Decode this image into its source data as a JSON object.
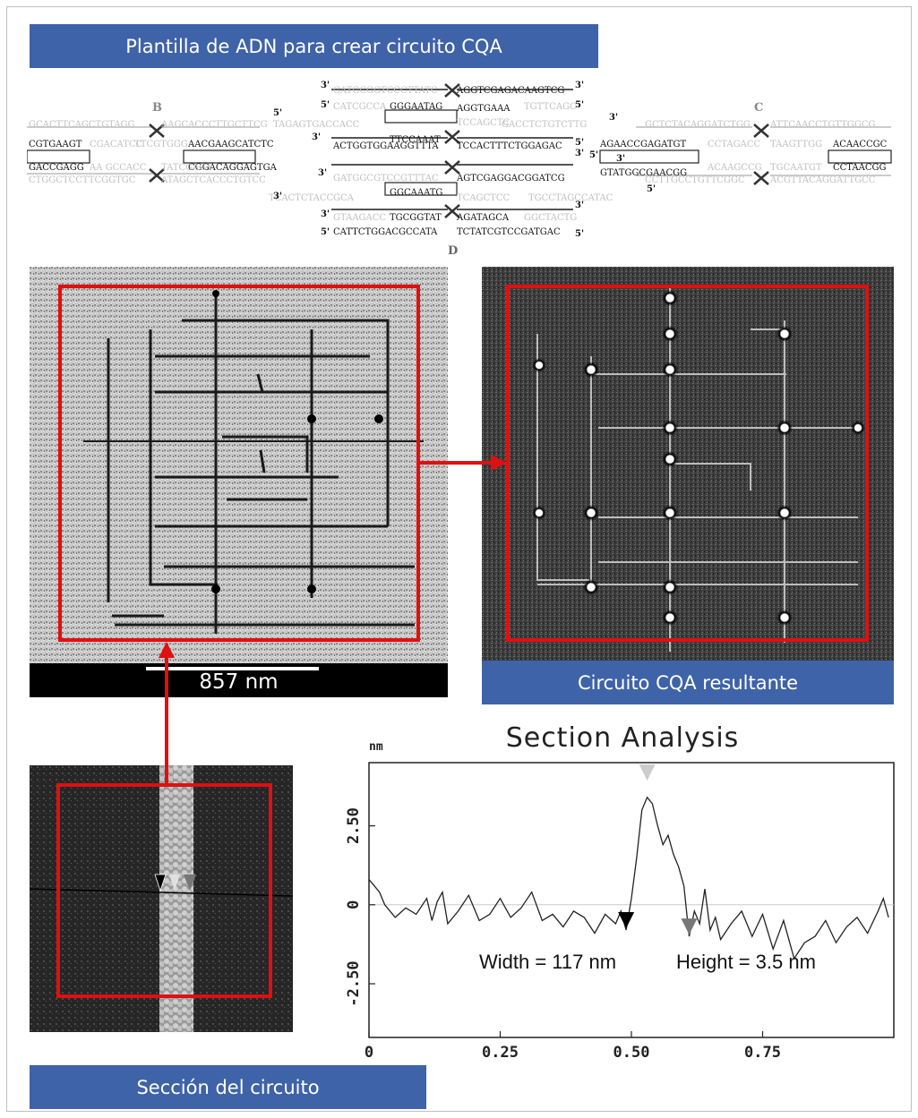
{
  "banners": {
    "template": "Plantilla de ADN para crear circuito CQA",
    "result": "Circuito CQA resultante",
    "section": "Sección del circuito"
  },
  "dna_template": {
    "block_labels": [
      "B",
      "C",
      "D"
    ],
    "prime_marks": [
      "3'",
      "5'"
    ],
    "sequences_dark": [
      "AGGTCGAGACAAGTCG",
      "GGGAATAG",
      "TTCCAAAT",
      "AGGTGAAA",
      "ACTGGTGGAAGGTTTA",
      "TCCACTTTCTGGAGAC",
      "CGTGAAGT",
      "AACGAAGCATCTC",
      "GACCGAGG",
      "CGGACAGGAGTGA",
      "AGTCGAGGACGGATCG",
      "GGCAAATG",
      "TGCGGTAT",
      "AGATAGCA",
      "CATTCTGGACGCCATA",
      "TCTATCGTCCGATGAC",
      "AGAACCGAGATGT",
      "GTATGGCGAACGG",
      "ACAACCGC",
      "CCTAACGG"
    ],
    "sequences_light": [
      "GATGCGGTCCCTTATC",
      "CATCGCCA",
      "TCCAGCTC",
      "TGTTCAGC",
      "GCACTTCAGCTGTAGG",
      "AAGCACCCTTGCTTCG",
      "CGACATCC",
      "TTCGTGGG",
      "TAGAGTGACCACC",
      "GACCTCTGTCTTG",
      "AA GCCACC",
      "CTGGCTCCTTCGGTGC",
      "TATCGAGT",
      "ATAGCTCACCCTGTCC",
      "GATGGCGTCCGTTTAC",
      "TCACTCTACCGCA",
      "TCAGCTCC",
      "TGCCTAGCCATAC",
      "GTAAGACC",
      "GGCTACTG",
      "GCTCTACAGGATCTGG",
      "ATTCAACCTGTTGGCG",
      "CCTAGACC",
      "TAAGTTGG",
      "ACAAGCCG",
      "TGCAATGT",
      "CCTTGCCTGTTCGGC",
      "ACGTTACAGGATTGCC"
    ]
  },
  "scale_bar": {
    "label": "857 nm"
  },
  "section_chart": {
    "title": "Section Analysis",
    "y_unit": "nm",
    "width_label": "Width = 117 nm",
    "height_label": "Height = 3.5 nm"
  },
  "chart_data": {
    "type": "line",
    "title": "Section Analysis",
    "ylabel": "nm",
    "xlim": [
      0,
      1.0
    ],
    "ylim": [
      -4.2,
      4.5
    ],
    "xticks": [
      "0",
      "0.25",
      "0.50",
      "0.75"
    ],
    "yticks": [
      "2.50",
      "0",
      "-2.50"
    ],
    "series": [
      {
        "x": [
          0.0,
          0.01,
          0.02,
          0.03,
          0.05,
          0.07,
          0.09,
          0.11,
          0.12,
          0.13,
          0.14,
          0.15,
          0.17,
          0.19,
          0.21,
          0.23,
          0.25,
          0.27,
          0.29,
          0.31,
          0.33,
          0.35,
          0.37,
          0.39,
          0.41,
          0.43,
          0.45,
          0.47,
          0.48,
          0.49,
          0.5,
          0.51,
          0.52,
          0.53,
          0.54,
          0.55,
          0.56,
          0.57,
          0.58,
          0.59,
          0.6,
          0.61,
          0.62,
          0.63,
          0.64,
          0.65,
          0.66,
          0.67,
          0.69,
          0.71,
          0.73,
          0.75,
          0.77,
          0.79,
          0.81,
          0.83,
          0.85,
          0.87,
          0.89,
          0.91,
          0.93,
          0.95,
          0.97,
          0.98,
          0.99
        ],
        "values": [
          0.8,
          0.6,
          0.4,
          0.0,
          -0.4,
          -0.1,
          -0.3,
          0.2,
          -0.5,
          0.1,
          0.4,
          -0.6,
          -0.2,
          0.3,
          -0.5,
          -0.3,
          0.2,
          -0.4,
          -0.1,
          0.4,
          -0.5,
          -0.3,
          -0.7,
          -0.2,
          -0.4,
          -0.9,
          -0.3,
          -0.6,
          -0.2,
          -0.8,
          0.2,
          1.5,
          3.0,
          3.4,
          3.2,
          2.5,
          1.9,
          2.2,
          1.6,
          1.2,
          0.6,
          -1.0,
          -0.2,
          -0.6,
          0.5,
          -0.8,
          -0.4,
          -1.1,
          -0.6,
          -0.2,
          -1.0,
          -0.3,
          -1.4,
          -0.5,
          -1.7,
          -1.2,
          -1.0,
          -0.5,
          -1.2,
          -0.7,
          -0.4,
          -0.9,
          -0.2,
          0.2,
          -0.4
        ]
      }
    ],
    "cursors": [
      {
        "x": 0.49,
        "color": "#000000"
      },
      {
        "x": 0.53,
        "color": "#cccccc"
      },
      {
        "x": 0.61,
        "color": "#777777"
      }
    ],
    "annotations": [
      "Width = 117 nm",
      "Height = 3.5 nm"
    ],
    "grid": false,
    "legend": "none"
  }
}
